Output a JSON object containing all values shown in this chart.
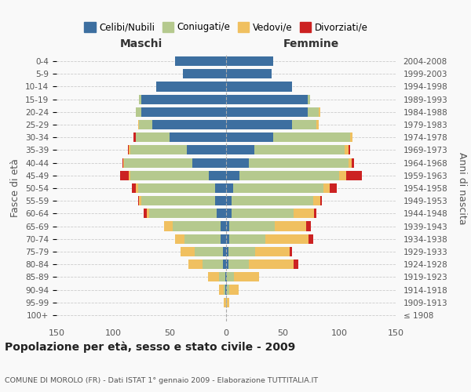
{
  "age_groups": [
    "100+",
    "95-99",
    "90-94",
    "85-89",
    "80-84",
    "75-79",
    "70-74",
    "65-69",
    "60-64",
    "55-59",
    "50-54",
    "45-49",
    "40-44",
    "35-39",
    "30-34",
    "25-29",
    "20-24",
    "15-19",
    "10-14",
    "5-9",
    "0-4"
  ],
  "birth_years": [
    "≤ 1908",
    "1909-1913",
    "1914-1918",
    "1919-1923",
    "1924-1928",
    "1929-1933",
    "1934-1938",
    "1939-1943",
    "1944-1948",
    "1949-1953",
    "1954-1958",
    "1959-1963",
    "1964-1968",
    "1969-1973",
    "1974-1978",
    "1979-1983",
    "1984-1988",
    "1989-1993",
    "1994-1998",
    "1999-2003",
    "2004-2008"
  ],
  "colors": {
    "celibe": "#3d6fa0",
    "coniugato": "#b5c98e",
    "vedovo": "#f0c060",
    "divorziato": "#cc2222"
  },
  "maschi": {
    "celibe": [
      0,
      0,
      1,
      1,
      3,
      3,
      5,
      5,
      8,
      10,
      10,
      15,
      30,
      35,
      50,
      65,
      75,
      75,
      62,
      38,
      45
    ],
    "coniugato": [
      0,
      0,
      1,
      5,
      18,
      25,
      32,
      42,
      60,
      65,
      68,
      70,
      60,
      50,
      30,
      12,
      5,
      2,
      0,
      0,
      0
    ],
    "vedovo": [
      0,
      2,
      4,
      10,
      12,
      12,
      8,
      8,
      2,
      2,
      2,
      1,
      1,
      1,
      0,
      1,
      0,
      0,
      0,
      0,
      0
    ],
    "divorziato": [
      0,
      0,
      0,
      0,
      0,
      0,
      0,
      0,
      3,
      1,
      3,
      8,
      1,
      1,
      2,
      0,
      0,
      0,
      0,
      0,
      0
    ]
  },
  "femmine": {
    "nubile": [
      0,
      0,
      1,
      1,
      2,
      2,
      3,
      3,
      5,
      5,
      6,
      12,
      20,
      25,
      42,
      58,
      72,
      72,
      58,
      40,
      42
    ],
    "coniugata": [
      0,
      1,
      2,
      6,
      18,
      24,
      32,
      40,
      55,
      72,
      80,
      88,
      88,
      80,
      68,
      22,
      10,
      2,
      0,
      0,
      0
    ],
    "vedova": [
      0,
      2,
      8,
      22,
      40,
      30,
      38,
      28,
      18,
      6,
      6,
      6,
      3,
      3,
      2,
      2,
      1,
      0,
      0,
      0,
      0
    ],
    "divorziata": [
      0,
      0,
      0,
      0,
      4,
      2,
      4,
      4,
      2,
      2,
      6,
      14,
      2,
      2,
      0,
      0,
      0,
      0,
      0,
      0,
      0
    ]
  },
  "xlim": 150,
  "title": "Popolazione per età, sesso e stato civile - 2009",
  "subtitle": "COMUNE DI MOROLO (FR) - Dati ISTAT 1° gennaio 2009 - Elaborazione TUTTITALIA.IT",
  "ylabel_left": "Fasce di età",
  "ylabel_right": "Anni di nascita",
  "xlabel_maschi": "Maschi",
  "xlabel_femmine": "Femmine",
  "legend_labels": [
    "Celibi/Nubili",
    "Coniugati/e",
    "Vedovi/e",
    "Divorziati/e"
  ],
  "bg_color": "#f9f9f9",
  "grid_color": "#cccccc",
  "text_color": "#555555"
}
